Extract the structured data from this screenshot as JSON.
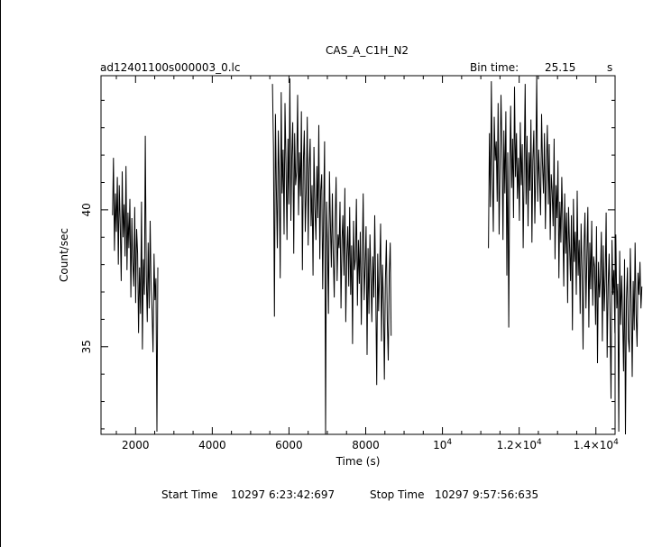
{
  "header": {
    "title": "CAS_A_C1H_N2",
    "filename": "ad12401100s000003_0.lc",
    "bin_time_label": "Bin time:",
    "bin_time_value": "25.15",
    "bin_time_unit": "s"
  },
  "footer": {
    "start_label": "Start Time",
    "start_value": "10297  6:23:42:697",
    "stop_label": "Stop Time",
    "stop_value": "10297  9:57:56:635"
  },
  "chart_data": {
    "type": "line",
    "title": "CAS_A_C1H_N2",
    "xlabel": "Time (s)",
    "ylabel": "Count/sec",
    "xlim": [
      1100,
      14500
    ],
    "ylim": [
      31.8,
      44.9
    ],
    "x_ticks": [
      "2000",
      "4000",
      "6000",
      "8000",
      "10^4",
      "1.2×10^4",
      "1.4×10^4"
    ],
    "x_tick_values": [
      2000,
      4000,
      6000,
      8000,
      10000,
      12000,
      14000
    ],
    "y_ticks": [
      "35",
      "40"
    ],
    "y_tick_values": [
      35,
      40
    ],
    "grid": false,
    "segments": [
      {
        "x_start": 1400,
        "dx": 25.15,
        "values": [
          39.8,
          41.9,
          38.5,
          40.6,
          39.2,
          41.2,
          38.0,
          40.9,
          39.5,
          37.4,
          41.4,
          39.0,
          40.2,
          38.3,
          41.6,
          37.8,
          39.9,
          38.6,
          40.4,
          36.8,
          39.7,
          38.1,
          37.2,
          40.1,
          36.6,
          39.3,
          38.4,
          35.5,
          37.9,
          36.2,
          40.3,
          34.9,
          38.2,
          36.9,
          42.7,
          37.6,
          35.9,
          38.8,
          36.4,
          39.6,
          37.1,
          36.3,
          34.8,
          38.4,
          36.7,
          37.5,
          31.9,
          37.9
        ]
      },
      {
        "x_start": 5570,
        "dx": 25.15,
        "values": [
          44.6,
          42.3,
          36.1,
          43.5,
          40.8,
          38.6,
          42.9,
          41.2,
          37.5,
          44.3,
          40.6,
          42.2,
          39.1,
          43.9,
          41.7,
          38.9,
          42.6,
          40.2,
          44.8,
          39.6,
          41.9,
          43.2,
          38.4,
          42.8,
          40.9,
          41.4,
          44.2,
          39.8,
          42.1,
          40.5,
          43.6,
          37.8,
          41.8,
          42.9,
          39.2,
          40.8,
          43.4,
          38.7,
          41.5,
          42.6,
          39.4,
          40.9,
          37.6,
          42.3,
          40.1,
          38.9,
          41.6,
          39.7,
          43.1,
          38.2,
          40.7,
          41.3,
          37.1,
          39.9,
          42.5,
          31.8,
          40.3,
          38.8,
          36.2,
          41.4,
          39.6,
          37.9,
          40.6,
          38.4,
          36.8,
          39.7,
          41.2,
          37.4,
          39.1,
          38.6,
          40.3,
          36.4,
          38.9,
          39.8,
          37.6,
          40.8,
          35.9,
          38.3,
          39.4,
          37.2,
          40.1,
          36.9,
          38.7,
          35.1,
          39.6,
          37.8,
          38.2,
          40.4,
          36.5,
          38.9,
          37.3,
          39.2,
          35.8,
          38.1,
          40.6,
          36.7,
          37.9,
          39.4,
          34.7,
          38.6,
          36.2,
          39.1,
          37.5,
          35.9,
          38.3,
          36.8,
          39.8,
          37.1,
          33.6,
          38.4,
          36.3,
          37.7,
          39.5,
          35.2,
          38.0,
          36.6,
          33.8,
          37.4,
          38.9,
          36.0,
          34.5,
          37.7,
          38.8,
          35.4
        ]
      },
      {
        "x_start": 11200,
        "dx": 25.15,
        "values": [
          38.6,
          42.8,
          40.1,
          44.7,
          41.3,
          39.2,
          43.4,
          41.8,
          42.5,
          40.3,
          43.9,
          39.1,
          41.7,
          44.2,
          42.3,
          38.9,
          42.9,
          40.6,
          43.6,
          37.6,
          42.1,
          35.7,
          41.5,
          43.8,
          40.8,
          42.6,
          39.7,
          44.5,
          41.2,
          42.8,
          40.4,
          41.9,
          39.6,
          43.2,
          40.9,
          42.4,
          38.6,
          41.6,
          44.6,
          40.2,
          42.7,
          39.4,
          42.1,
          40.7,
          43.3,
          38.8,
          41.8,
          42.9,
          39.5,
          41.4,
          44.9,
          40.3,
          42.2,
          41.1,
          39.8,
          43.5,
          41.7,
          40.6,
          42.8,
          39.3,
          41.5,
          43.1,
          40.2,
          42.4,
          38.9,
          41.3,
          40.7,
          39.4,
          42.6,
          38.2,
          40.9,
          39.7,
          41.8,
          37.5,
          40.3,
          38.8,
          41.2,
          39.5,
          37.2,
          40.6,
          38.4,
          39.9,
          36.6,
          40.1,
          38.7,
          37.4,
          39.8,
          35.6,
          40.4,
          38.1,
          39.2,
          36.9,
          40.7,
          37.6,
          38.9,
          36.2,
          39.5,
          37.8,
          34.9,
          38.6,
          39.9,
          36.4,
          38.2,
          40.1,
          35.7,
          38.8,
          37.1,
          39.6,
          36.5,
          38.3,
          37.9,
          35.8,
          39.4,
          34.4,
          38.1,
          36.8,
          37.5,
          39.2,
          35.2,
          38.7,
          36.3,
          37.6,
          39.9,
          34.6,
          37.2,
          38.4,
          36.1,
          33.1,
          38.9,
          36.9,
          37.8,
          35.5,
          39.1,
          36.4,
          37.3,
          31.9,
          38.5,
          35.8,
          37.6,
          36.2,
          34.1,
          38.2,
          31.8,
          36.7,
          37.9,
          35.3,
          34.8,
          38.6,
          36.5,
          33.9,
          37.4,
          35.6,
          38.8,
          36.2,
          35.0,
          37.7,
          36.9,
          38.1,
          36.4,
          37.2
        ]
      }
    ]
  }
}
